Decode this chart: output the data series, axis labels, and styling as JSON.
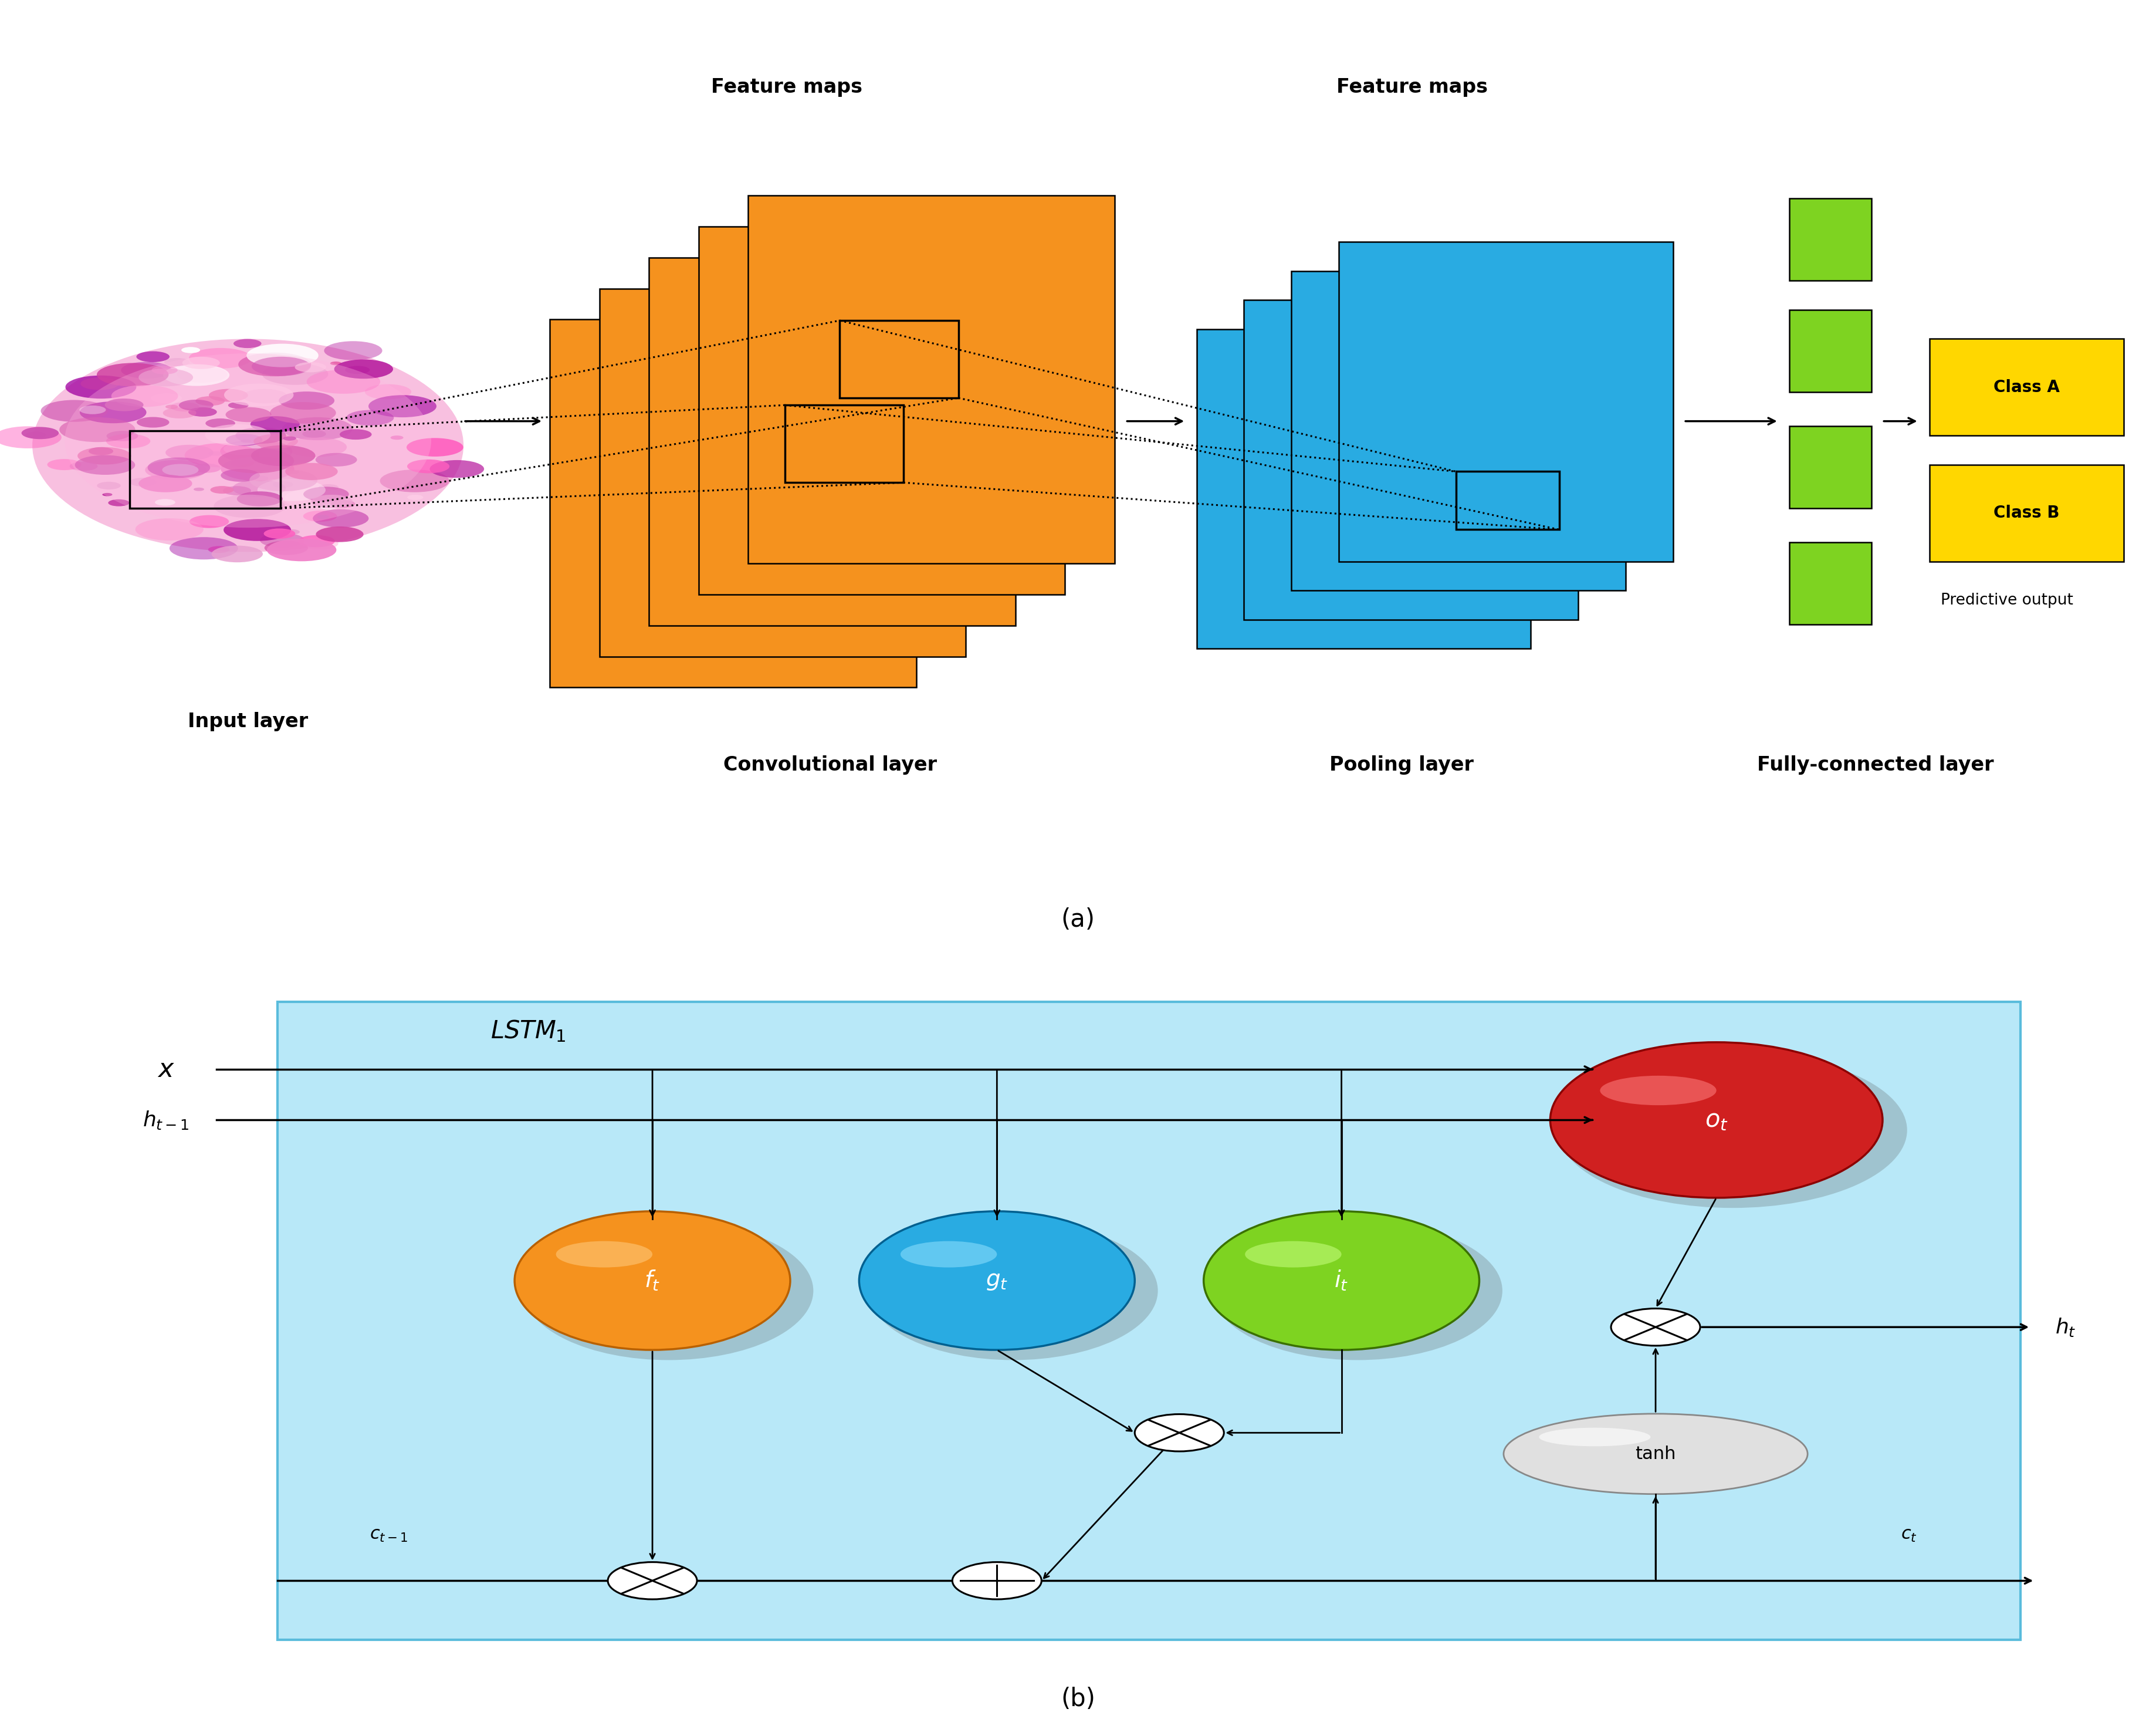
{
  "fig_width": 36.75,
  "fig_height": 29.46,
  "bg_color": "#ffffff",
  "top_label_a": "(a)",
  "top_label_b": "(b)",
  "cnn_labels": {
    "input_layer": "Input layer",
    "conv_label": "Convolutional layer",
    "pool_label": "Pooling layer",
    "fc_label": "Fully-connected layer",
    "feat_maps1": "Feature maps",
    "feat_maps2": "Feature maps",
    "class_a": "Class A",
    "class_b": "Class B",
    "pred_out": "Predictive output"
  },
  "lstm_labels": {
    "x": "x",
    "h_prev": "h_{t-1}",
    "lstm1": "LSTM_1",
    "f": "f_t",
    "g": "g_t",
    "i": "i_t",
    "o": "o_t",
    "h": "h_t",
    "c_prev": "c_{t-1}",
    "c": "c_t",
    "tanh": "tanh"
  },
  "colors": {
    "orange_conv": "#F5921E",
    "blue_pool": "#29ABE2",
    "green_fc": "#7ED321",
    "yellow_class": "#FFD700",
    "red_ot": "#D02020",
    "orange_ft": "#F5921E",
    "blue_gt": "#29ABE2",
    "green_it": "#7ED321",
    "gray_tanh": "#D8D8D8",
    "lstm_bg": "#B8E8F8",
    "lstm_border": "#5ABCDC",
    "black": "#000000",
    "white": "#ffffff"
  }
}
